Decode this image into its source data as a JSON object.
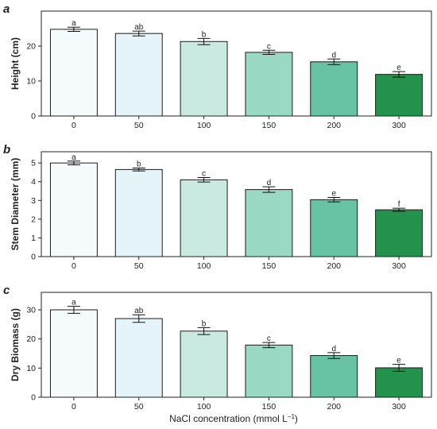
{
  "chart_data": [
    {
      "type": "bar",
      "panel": "a",
      "categories": [
        "0",
        "50",
        "100",
        "150",
        "200",
        "300"
      ],
      "values": [
        24.8,
        23.6,
        21.3,
        18.2,
        15.5,
        11.9
      ],
      "errors": [
        0.6,
        0.7,
        0.9,
        0.6,
        0.8,
        0.8
      ],
      "significance": [
        "a",
        "ab",
        "b",
        "c",
        "d",
        "e"
      ],
      "colors": [
        "#f5fbfd",
        "#e4f4f8",
        "#c9eae1",
        "#9ad9c4",
        "#67c3a3",
        "#23924c"
      ],
      "ylabel": "Height (cm)",
      "ylim": [
        0,
        30
      ],
      "yticks": [
        0,
        10,
        20
      ]
    },
    {
      "type": "bar",
      "panel": "b",
      "categories": [
        "0",
        "50",
        "100",
        "150",
        "200",
        "300"
      ],
      "values": [
        5.0,
        4.65,
        4.1,
        3.58,
        3.04,
        2.5
      ],
      "errors": [
        0.1,
        0.08,
        0.12,
        0.15,
        0.12,
        0.08
      ],
      "significance": [
        "a",
        "b",
        "c",
        "d",
        "e",
        "f"
      ],
      "colors": [
        "#f5fbfd",
        "#e4f4f8",
        "#c9eae1",
        "#9ad9c4",
        "#67c3a3",
        "#23924c"
      ],
      "ylabel": "Stem Diameter (mm)",
      "ylim": [
        0,
        5.6
      ],
      "yticks": [
        0,
        1,
        2,
        3,
        4,
        5
      ]
    },
    {
      "type": "bar",
      "panel": "c",
      "categories": [
        "0",
        "50",
        "100",
        "150",
        "200",
        "300"
      ],
      "values": [
        30.0,
        27.0,
        22.7,
        17.9,
        14.3,
        10.1
      ],
      "errors": [
        1.2,
        1.3,
        1.2,
        0.9,
        1.0,
        1.2
      ],
      "significance": [
        "a",
        "ab",
        "b",
        "c",
        "d",
        "e"
      ],
      "colors": [
        "#f5fbfd",
        "#e4f4f8",
        "#c9eae1",
        "#9ad9c4",
        "#67c3a3",
        "#23924c"
      ],
      "ylabel": "Dry Biomass (g)",
      "ylim": [
        0,
        36
      ],
      "yticks": [
        0,
        10,
        20,
        30
      ]
    }
  ],
  "xlabel": {
    "main": "NaCl concentration (mmol L",
    "superscript": "−1",
    "close": ")"
  },
  "style": {
    "axis_color": "#222222",
    "bar_edge": "#1a1a1a"
  }
}
